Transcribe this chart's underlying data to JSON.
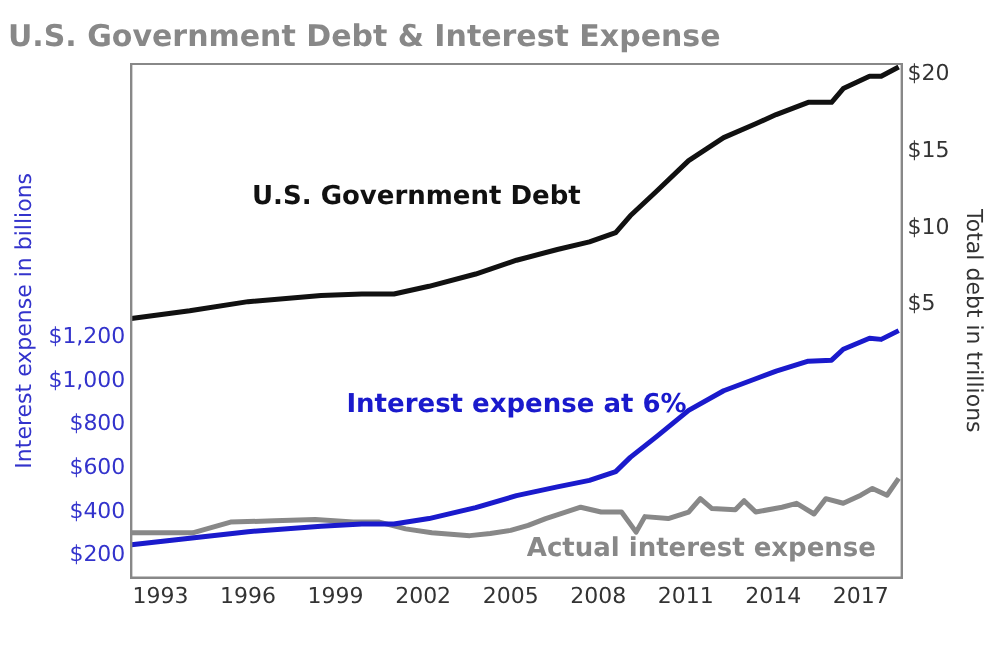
{
  "chart_data": {
    "type": "line",
    "title": "U.S. Government Debt & Interest Expense",
    "ylabel": "Interest expense in billions",
    "y2label": "Total debt in trillions",
    "xlim": [
      1992,
      2018.4
    ],
    "xticks": [
      1993,
      1996,
      1999,
      2002,
      2005,
      2008,
      2011,
      2014,
      2017
    ],
    "ylim": [
      100,
      2450
    ],
    "yticks": [
      {
        "value": 200,
        "label": "$200"
      },
      {
        "value": 400,
        "label": "$400"
      },
      {
        "value": 600,
        "label": "$600"
      },
      {
        "value": 800,
        "label": "$800"
      },
      {
        "value": 1000,
        "label": "$1,000"
      },
      {
        "value": 1200,
        "label": "$1,200"
      }
    ],
    "y2lim": [
      -12.8,
      20.7
    ],
    "y2ticks": [
      {
        "value": 5,
        "label": "$5"
      },
      {
        "value": 10,
        "label": "$10"
      },
      {
        "value": 15,
        "label": "$15"
      },
      {
        "value": 20,
        "label": "$20"
      }
    ],
    "grid": false,
    "legend": false,
    "marker": "none",
    "line_style": "solid",
    "series": [
      {
        "name": "U.S. Government Debt",
        "color": "#111111",
        "axis": "y2",
        "x": [
          1992.0,
          1994.0,
          1996.0,
          1998.5,
          1999.9,
          2001.0,
          2002.2,
          2003.8,
          2005.2,
          2006.6,
          2007.7,
          2008.6,
          2009.1,
          2010.0,
          2011.1,
          2012.3,
          2013.4,
          2014.1,
          2015.2,
          2016.0,
          2016.4,
          2017.3,
          2017.7,
          2018.3
        ],
        "values": [
          4.1,
          4.6,
          5.2,
          5.6,
          5.7,
          5.7,
          6.2,
          7.0,
          7.9,
          8.6,
          9.1,
          9.7,
          10.8,
          12.4,
          14.4,
          15.9,
          16.8,
          17.4,
          18.2,
          18.2,
          19.1,
          19.9,
          19.9,
          20.5
        ]
      },
      {
        "name": "Interest expense at 6%",
        "color": "#1a1acc",
        "axis": "y",
        "x": [
          1992.0,
          1994.0,
          1996.0,
          1998.5,
          1999.9,
          2001.0,
          2002.2,
          2003.8,
          2005.2,
          2006.6,
          2007.7,
          2008.6,
          2009.1,
          2010.0,
          2011.1,
          2012.3,
          2013.4,
          2014.1,
          2015.2,
          2016.0,
          2016.4,
          2017.3,
          2017.7,
          2018.3
        ],
        "values": [
          250,
          280,
          310,
          335,
          345,
          345,
          370,
          420,
          475,
          515,
          545,
          585,
          650,
          745,
          865,
          955,
          1010,
          1045,
          1090,
          1095,
          1145,
          1195,
          1190,
          1230
        ]
      },
      {
        "name": "Actual interest expense",
        "color": "#888888",
        "axis": "y",
        "x": [
          1992.0,
          1994.1,
          1995.4,
          1996.9,
          1998.3,
          1999.6,
          2000.5,
          2001.4,
          2002.3,
          2003.6,
          2004.3,
          2005.0,
          2005.6,
          2006.2,
          2007.4,
          2008.1,
          2008.8,
          2009.3,
          2009.6,
          2010.4,
          2011.1,
          2011.5,
          2011.9,
          2012.7,
          2013.0,
          2013.4,
          2014.3,
          2014.8,
          2015.4,
          2015.8,
          2016.4,
          2017.0,
          2017.4,
          2017.9,
          2018.3
        ],
        "values": [
          305,
          305,
          354,
          360,
          366,
          354,
          354,
          323,
          305,
          292,
          302,
          316,
          339,
          370,
          422,
          400,
          400,
          308,
          379,
          370,
          400,
          461,
          416,
          410,
          452,
          400,
          422,
          440,
          391,
          461,
          440,
          477,
          508,
          477,
          554
        ]
      }
    ]
  }
}
